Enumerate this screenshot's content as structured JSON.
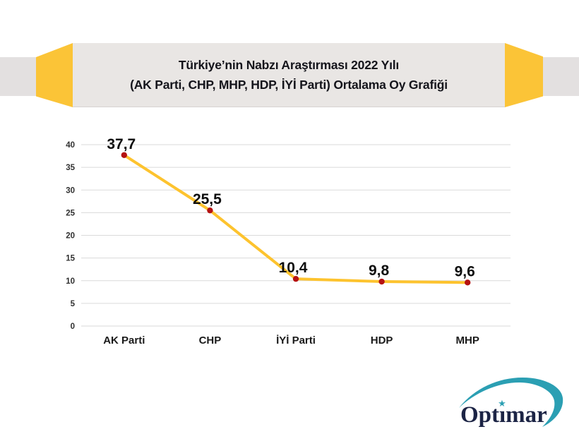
{
  "banner": {
    "title_line1": "Türkiye’nin Nabzı Araştırması 2022 Yılı",
    "title_line2": "(AK Parti, CHP, MHP, HDP, İYİ Parti) Ortalama Oy Grafiği",
    "ribbon_color": "#fbc437",
    "panel_color": "#e9e6e4",
    "strip_color": "#e3e0e0"
  },
  "chart_data": {
    "type": "line",
    "categories": [
      "AK Parti",
      "CHP",
      "İYİ Parti",
      "HDP",
      "MHP"
    ],
    "values": [
      37.7,
      25.5,
      10.4,
      9.8,
      9.6
    ],
    "point_labels": [
      "37,7",
      "25,5",
      "10,4",
      "9,8",
      "9,6"
    ],
    "title": "",
    "xlabel": "",
    "ylabel": "",
    "ylim": [
      0,
      40
    ],
    "yticks": [
      0,
      5,
      10,
      15,
      20,
      25,
      30,
      35,
      40
    ],
    "grid": true,
    "legend": false,
    "line_color": "#fdc32e",
    "marker_color": "#b51212",
    "gridline_color": "#dadada",
    "ytick_color": "#303030",
    "xlabel_color": "#1a1a1a",
    "point_label_color": "#0d0d0d"
  },
  "logo": {
    "text": "Optimar",
    "star_glyph": "★",
    "teal": "#2b9fb3",
    "navy": "#1c2445"
  }
}
